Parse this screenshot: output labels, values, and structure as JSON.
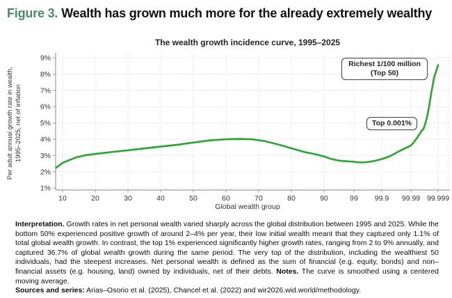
{
  "figure": {
    "label": "Figure 3.",
    "title": "Wealth has grown much more for the already extremely wealthy",
    "label_color": "#4a8a68"
  },
  "chart_data": {
    "type": "line",
    "title": "The wealth growth incidence curve, 1995–2025",
    "xlabel": "Global wealth group",
    "ylabel": "Per adult annual growth rate in wealth, 1995–2025, net of inflation",
    "ylabel_lines": [
      "Per adult annual growth rate in wealth,",
      "1995–2025, net of inflation"
    ],
    "x_tick_labels": [
      "10",
      "20",
      "30",
      "40",
      "50",
      "60",
      "70",
      "80",
      "90",
      "99",
      "99.9",
      "99.99",
      "99.999"
    ],
    "y_tick_labels": [
      "9%",
      "8%",
      "7%",
      "6%",
      "5%",
      "4%",
      "3%",
      "2%",
      "1%"
    ],
    "ylim": [
      1,
      9
    ],
    "y_unit": "%",
    "x_scale": "percentile, logarithmic in top tail",
    "grid": "dotted",
    "legend": "none",
    "line_color": "#2da636",
    "series": [
      {
        "name": "Per adult annual wealth growth rate (%) by global wealth percentile",
        "points": [
          [
            8,
            2.25
          ],
          [
            10,
            2.55
          ],
          [
            12,
            2.72
          ],
          [
            14,
            2.88
          ],
          [
            17,
            3.02
          ],
          [
            20,
            3.1
          ],
          [
            25,
            3.22
          ],
          [
            30,
            3.32
          ],
          [
            35,
            3.44
          ],
          [
            40,
            3.55
          ],
          [
            45,
            3.66
          ],
          [
            50,
            3.8
          ],
          [
            55,
            3.93
          ],
          [
            60,
            4.0
          ],
          [
            64,
            4.02
          ],
          [
            68,
            4.0
          ],
          [
            72,
            3.88
          ],
          [
            76,
            3.68
          ],
          [
            80,
            3.45
          ],
          [
            84,
            3.22
          ],
          [
            88,
            3.05
          ],
          [
            91,
            2.92
          ],
          [
            94,
            2.8
          ],
          [
            97,
            2.68
          ],
          [
            99,
            2.62
          ],
          [
            99.3,
            2.58
          ],
          [
            99.6,
            2.58
          ],
          [
            99.8,
            2.66
          ],
          [
            99.9,
            2.78
          ],
          [
            99.93,
            2.88
          ],
          [
            99.95,
            2.98
          ],
          [
            99.97,
            3.2
          ],
          [
            99.98,
            3.36
          ],
          [
            99.99,
            3.62
          ],
          [
            99.992,
            3.8
          ],
          [
            99.994,
            4.08
          ],
          [
            99.995,
            4.28
          ],
          [
            99.996,
            4.52
          ],
          [
            99.9966,
            4.66
          ],
          [
            99.997,
            4.95
          ],
          [
            99.9974,
            5.3
          ],
          [
            99.9978,
            5.9
          ],
          [
            99.9982,
            6.8
          ],
          [
            99.9986,
            7.8
          ],
          [
            99.999,
            8.55
          ]
        ]
      }
    ],
    "annotations": [
      {
        "lines": [
          "Richest 1/100 million",
          "(Top 50)"
        ]
      },
      {
        "lines": [
          "Top 0.001%"
        ]
      }
    ]
  },
  "notes": {
    "interpretation_segments": [
      {
        "text": "Interpretation.",
        "bold": true
      },
      {
        "text": " Growth rates in net personal wealth varied sharply across the global distribution between 1995 and 2025. While the bottom 50% experienced positive growth of around 2–4% per year, their low initial wealth meant that they captured only 1.1% of total global wealth growth. In contrast, the top 1% experienced significantly higher growth rates, ranging from 2 to 9% annually, and captured 36.7% of global wealth growth during the same period. The very top of the distribution, including the wealthiest 50 individuals, had the steepest increases. Net personal wealth is defined as the sum of financial (e.g. equity, bonds) and non–financial assets (e.g. housing, land) owned by individuals, net of their debts. ",
        "bold": false
      },
      {
        "text": "Notes.",
        "bold": true
      },
      {
        "text": " The curve is smoothed using a centered moving average.",
        "bold": false
      }
    ],
    "sources_segments": [
      {
        "text": "Sources and series:",
        "bold": true
      },
      {
        "text": " Arias–Osorio et al. (2025), Chancel et al. (2022) and wir2026.wid.world/methodology.",
        "bold": false
      }
    ]
  }
}
